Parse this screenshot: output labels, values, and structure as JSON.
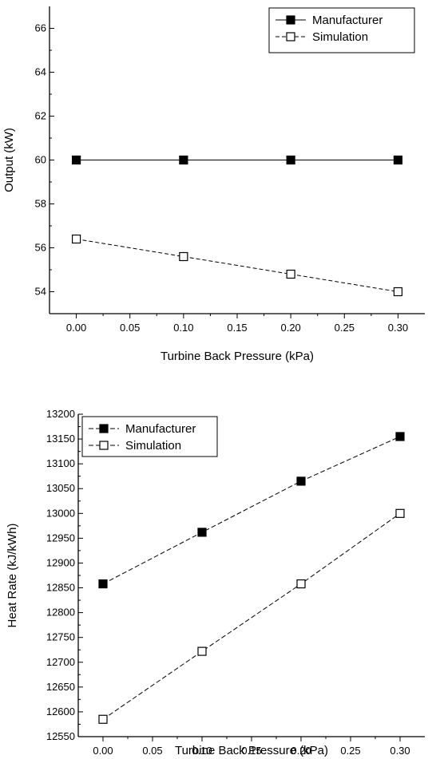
{
  "chart_data": [
    {
      "type": "line",
      "title": "",
      "xlabel": "Turbine Back Pressure (kPa)",
      "ylabel": "Output (kW)",
      "xlim": [
        -0.025,
        0.325
      ],
      "ylim": [
        53,
        67
      ],
      "xticks": [
        0.0,
        0.05,
        0.1,
        0.15,
        0.2,
        0.25,
        0.3
      ],
      "xtick_labels": [
        "0.00",
        "0.05",
        "0.10",
        "0.15",
        "0.20",
        "0.25",
        "0.30"
      ],
      "yticks": [
        54,
        56,
        58,
        60,
        62,
        64,
        66
      ],
      "ytick_labels": [
        "54",
        "56",
        "58",
        "60",
        "62",
        "64",
        "66"
      ],
      "legend_position": "top-right",
      "grid": false,
      "series": [
        {
          "name": "Manufacturer",
          "marker": "filled-square",
          "color": "#000000",
          "x": [
            0.0,
            0.1,
            0.2,
            0.3
          ],
          "values": [
            60,
            60,
            60,
            60
          ]
        },
        {
          "name": "Simulation",
          "marker": "open-square",
          "color": "#000000",
          "x": [
            0.0,
            0.1,
            0.2,
            0.3
          ],
          "values": [
            56.4,
            55.6,
            54.8,
            54.0
          ]
        }
      ]
    },
    {
      "type": "line",
      "title": "",
      "xlabel": "Turbine Back Pressure (kPa)",
      "ylabel": "Heat Rate (kJ/kWh)",
      "xlim": [
        -0.025,
        0.325
      ],
      "ylim": [
        12550,
        13200
      ],
      "xticks": [
        0.0,
        0.05,
        0.1,
        0.15,
        0.2,
        0.25,
        0.3
      ],
      "xtick_labels": [
        "0.00",
        "0.05",
        "0.10",
        "0.15",
        "0.20",
        "0.25",
        "0.30"
      ],
      "yticks": [
        12550,
        12600,
        12650,
        12700,
        12750,
        12800,
        12850,
        12900,
        12950,
        13000,
        13050,
        13100,
        13150,
        13200
      ],
      "ytick_labels": [
        "12550",
        "12600",
        "12650",
        "12700",
        "12750",
        "12800",
        "12850",
        "12900",
        "12950",
        "13000",
        "13050",
        "13100",
        "13150",
        "13200"
      ],
      "legend_position": "top-left",
      "grid": false,
      "series": [
        {
          "name": "Manufacturer",
          "marker": "filled-square",
          "color": "#000000",
          "x": [
            0.0,
            0.1,
            0.2,
            0.3
          ],
          "values": [
            12858,
            12962,
            13065,
            13155
          ]
        },
        {
          "name": "Simulation",
          "marker": "open-square",
          "color": "#000000",
          "x": [
            0.0,
            0.1,
            0.2,
            0.3
          ],
          "values": [
            12585,
            12722,
            12858,
            13000
          ]
        }
      ]
    }
  ]
}
